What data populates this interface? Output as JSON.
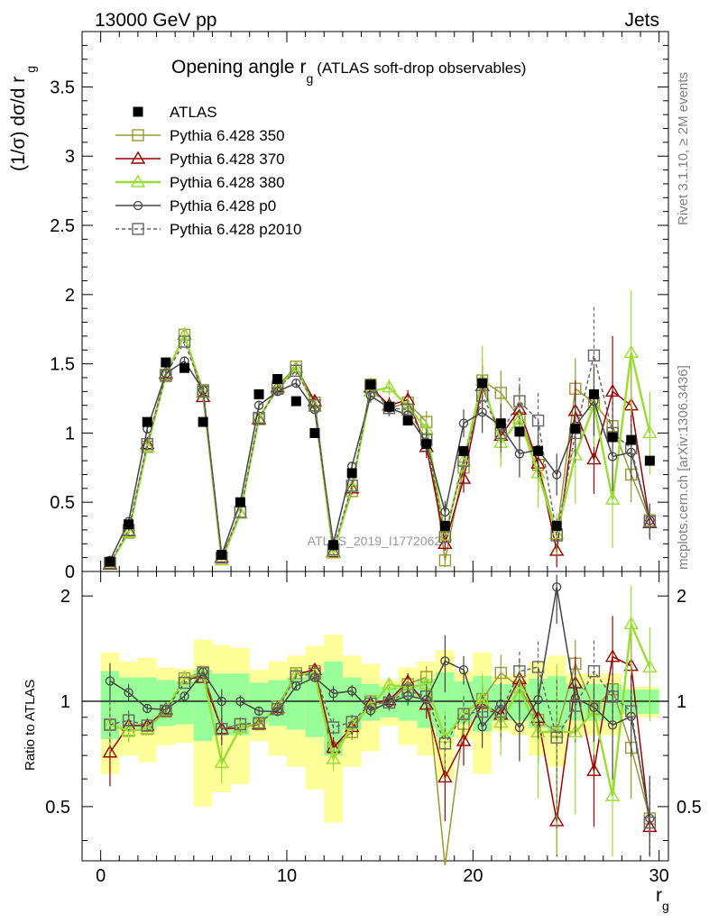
{
  "header": {
    "left": "13000 GeV pp",
    "right": "Jets"
  },
  "side": {
    "rivet": "Rivet 3.1.10, ≥ 2M events",
    "mcplots": "mcplots.cern.ch [arXiv:1306.3436]"
  },
  "chart_data": {
    "type": "line",
    "title": "Opening angle r",
    "title_sub": "g",
    "title_suffix": "(ATLAS soft-drop observables)",
    "watermark": "ATLAS_2019_I1772062",
    "xlabel": "r",
    "xlabel_sub": "g",
    "ylabel_top": "(1/σ) dσ/d r",
    "ylabel_top_sub": "g",
    "ylabel_bottom": "Ratio to ATLAS",
    "xlim": [
      -1,
      30.5
    ],
    "ylim_top": [
      0,
      3.9
    ],
    "ylim_bottom": [
      0.35,
      2.35
    ],
    "x_ticks": [
      0,
      10,
      20,
      30
    ],
    "y_ticks_top": [
      0,
      0.5,
      1,
      1.5,
      2,
      2.5,
      3,
      3.5
    ],
    "y_ticks_top_labels": [
      "0",
      "0.5",
      "1",
      "1.5",
      "2",
      "2.5",
      "3",
      "3.5"
    ],
    "y_ticks_bottom": [
      0.5,
      1,
      2
    ],
    "y_ticks_bottom_labels": [
      "0.5",
      "1",
      "2"
    ],
    "x": [
      0.5,
      1.5,
      2.5,
      3.5,
      4.5,
      5.5,
      6.5,
      7.5,
      8.5,
      9.5,
      10.5,
      11.5,
      12.5,
      13.5,
      14.5,
      15.5,
      16.5,
      17.5,
      18.5,
      19.5,
      20.5,
      21.5,
      22.5,
      23.5,
      24.5,
      25.5,
      26.5,
      27.5,
      28.5,
      29.5
    ],
    "data": {
      "name": "ATLAS",
      "values": [
        0.07,
        0.34,
        1.08,
        1.51,
        1.47,
        1.08,
        0.12,
        0.5,
        1.28,
        1.39,
        1.23,
        1.0,
        0.19,
        0.71,
        1.35,
        1.19,
        1.09,
        0.92,
        0.33,
        0.87,
        1.36,
        1.07,
        1.01,
        0.87,
        0.33,
        1.03,
        1.28,
        0.97,
        0.95,
        0.8
      ],
      "ratio_band_inner": [
        0.22,
        0.17,
        0.17,
        0.15,
        0.14,
        0.23,
        0.2,
        0.2,
        0.13,
        0.15,
        0.17,
        0.21,
        0.3,
        0.17,
        0.12,
        0.1,
        0.12,
        0.16,
        0.21,
        0.14,
        0.18,
        0.12,
        0.12,
        0.16,
        0.18,
        0.12,
        0.12,
        0.12,
        0.08,
        0.08
      ],
      "ratio_band_outer": [
        0.38,
        0.3,
        0.33,
        0.25,
        0.24,
        0.5,
        0.45,
        0.42,
        0.23,
        0.3,
        0.35,
        0.44,
        0.55,
        0.35,
        0.28,
        0.15,
        0.25,
        0.3,
        0.4,
        0.22,
        0.38,
        0.18,
        0.2,
        0.3,
        0.35,
        0.2,
        0.2,
        0.2,
        0.1,
        0.1
      ]
    },
    "series": [
      {
        "name": "Pythia 6.428 350",
        "color": "#999933",
        "marker": "square-open",
        "dash": false,
        "values": [
          0.06,
          0.28,
          0.9,
          1.41,
          1.71,
          1.31,
          0.1,
          0.43,
          1.1,
          1.34,
          1.48,
          1.22,
          0.14,
          0.58,
          1.35,
          1.18,
          1.22,
          1.08,
          0.08,
          0.75,
          1.38,
          1.29,
          1.11,
          0.77,
          0.27,
          1.32,
          1.22,
          1.05,
          0.7,
          0.37
        ],
        "errors": [
          0.01,
          0.02,
          0.03,
          0.03,
          0.03,
          0.03,
          0.01,
          0.02,
          0.03,
          0.03,
          0.03,
          0.03,
          0.01,
          0.03,
          0.05,
          0.06,
          0.07,
          0.08,
          0.05,
          0.1,
          0.15,
          0.16,
          0.17,
          0.2,
          0.12,
          0.22,
          0.25,
          0.25,
          0.2,
          0.12
        ]
      },
      {
        "name": "Pythia 6.428 370",
        "color": "#990000",
        "marker": "triangle-open",
        "dash": false,
        "values": [
          0.05,
          0.29,
          0.92,
          1.43,
          1.71,
          1.26,
          0.1,
          0.42,
          1.1,
          1.33,
          1.47,
          1.23,
          0.14,
          0.6,
          1.33,
          1.2,
          1.24,
          0.9,
          0.2,
          0.67,
          1.34,
          0.98,
          1.17,
          0.78,
          0.15,
          1.16,
          0.81,
          1.3,
          1.2,
          0.35
        ],
        "errors": [
          0.01,
          0.02,
          0.03,
          0.03,
          0.03,
          0.03,
          0.01,
          0.02,
          0.03,
          0.03,
          0.03,
          0.03,
          0.01,
          0.03,
          0.05,
          0.06,
          0.07,
          0.08,
          0.05,
          0.1,
          0.15,
          0.16,
          0.17,
          0.2,
          0.12,
          0.22,
          0.25,
          0.4,
          0.3,
          0.12
        ]
      },
      {
        "name": "Pythia 6.428 380",
        "color": "#99dd33",
        "marker": "triangle-open",
        "dash": false,
        "values": [
          0.06,
          0.28,
          0.9,
          1.42,
          1.71,
          1.29,
          0.08,
          0.42,
          1.11,
          1.32,
          1.47,
          1.19,
          0.13,
          0.61,
          1.3,
          1.33,
          1.19,
          1.03,
          0.26,
          0.8,
          1.38,
          0.93,
          1.1,
          0.71,
          0.27,
          0.84,
          1.2,
          0.52,
          1.58,
          1.0
        ],
        "errors": [
          0.01,
          0.02,
          0.03,
          0.03,
          0.03,
          0.03,
          0.01,
          0.02,
          0.03,
          0.03,
          0.03,
          0.03,
          0.01,
          0.03,
          0.05,
          0.06,
          0.07,
          0.08,
          0.05,
          0.1,
          0.25,
          0.18,
          0.2,
          0.25,
          0.15,
          0.35,
          0.3,
          0.35,
          0.45,
          0.3
        ]
      },
      {
        "name": "Pythia 6.428 p0",
        "color": "#444444",
        "marker": "circle-open",
        "dash": false,
        "values": [
          0.08,
          0.36,
          1.03,
          1.43,
          1.52,
          1.31,
          0.12,
          0.5,
          1.2,
          1.3,
          1.36,
          1.17,
          0.2,
          0.76,
          1.27,
          1.18,
          1.13,
          0.93,
          0.43,
          1.07,
          1.15,
          1.05,
          0.85,
          0.88,
          0.7,
          1.05,
          1.23,
          0.83,
          0.86,
          0.37
        ],
        "errors": [
          0.01,
          0.02,
          0.03,
          0.03,
          0.03,
          0.03,
          0.01,
          0.02,
          0.03,
          0.03,
          0.03,
          0.03,
          0.01,
          0.03,
          0.05,
          0.06,
          0.07,
          0.08,
          0.08,
          0.1,
          0.15,
          0.16,
          0.17,
          0.2,
          0.15,
          0.22,
          0.25,
          0.25,
          0.2,
          0.12
        ]
      },
      {
        "name": "Pythia 6.428 p2010",
        "color": "#666666",
        "marker": "square-open",
        "dash": true,
        "values": [
          0.06,
          0.3,
          0.92,
          1.42,
          1.66,
          1.3,
          0.1,
          0.43,
          1.11,
          1.32,
          1.45,
          1.2,
          0.16,
          0.62,
          1.33,
          1.18,
          1.17,
          0.95,
          0.25,
          0.8,
          1.27,
          1.0,
          1.23,
          1.09,
          0.26,
          1.0,
          1.56,
          1.0,
          0.89,
          0.36
        ],
        "errors": [
          0.01,
          0.02,
          0.03,
          0.03,
          0.03,
          0.03,
          0.01,
          0.02,
          0.03,
          0.03,
          0.03,
          0.03,
          0.01,
          0.03,
          0.05,
          0.06,
          0.07,
          0.08,
          0.05,
          0.1,
          0.15,
          0.16,
          0.17,
          0.2,
          0.12,
          0.22,
          0.35,
          0.25,
          0.2,
          0.12
        ]
      }
    ]
  }
}
